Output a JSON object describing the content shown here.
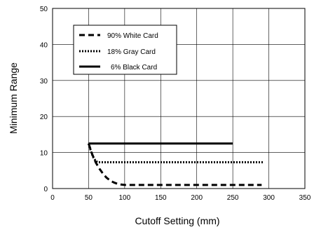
{
  "chart_data": {
    "type": "line",
    "title": "",
    "xlabel": "Cutoff Setting (mm)",
    "ylabel": "Minimum Range",
    "xlim": [
      0,
      350
    ],
    "ylim": [
      0,
      50
    ],
    "xticks": [
      0,
      50,
      100,
      150,
      200,
      250,
      300,
      350
    ],
    "yticks": [
      0,
      10,
      20,
      30,
      40,
      50
    ],
    "x_tick_labels": [
      "0",
      "50",
      "100",
      "150",
      "200",
      "250",
      "300",
      "350"
    ],
    "y_tick_labels": [
      "0",
      "10",
      "20",
      "30",
      "40",
      "50"
    ],
    "grid": true,
    "legend_position": "top-left",
    "series": [
      {
        "name": "90% White Card",
        "style": "dashed",
        "color": "#000000",
        "x": [
          50,
          55,
          60,
          65,
          70,
          75,
          80,
          85,
          90,
          95,
          100,
          150,
          200,
          250,
          290
        ],
        "y": [
          12.5,
          9.5,
          7.2,
          5.5,
          4.1,
          3.0,
          2.2,
          1.7,
          1.3,
          1.1,
          1.0,
          1.0,
          1.0,
          1.0,
          1.0
        ]
      },
      {
        "name": "18% Gray Card",
        "style": "dotted",
        "color": "#000000",
        "x": [
          50,
          53,
          56,
          60,
          63,
          100,
          150,
          200,
          250,
          292
        ],
        "y": [
          12.5,
          10.5,
          8.8,
          7.6,
          7.3,
          7.3,
          7.3,
          7.3,
          7.3,
          7.3
        ]
      },
      {
        "name": "6% Black Card",
        "style": "solid",
        "color": "#000000",
        "x": [
          50,
          250
        ],
        "y": [
          12.5,
          12.5
        ]
      }
    ]
  }
}
